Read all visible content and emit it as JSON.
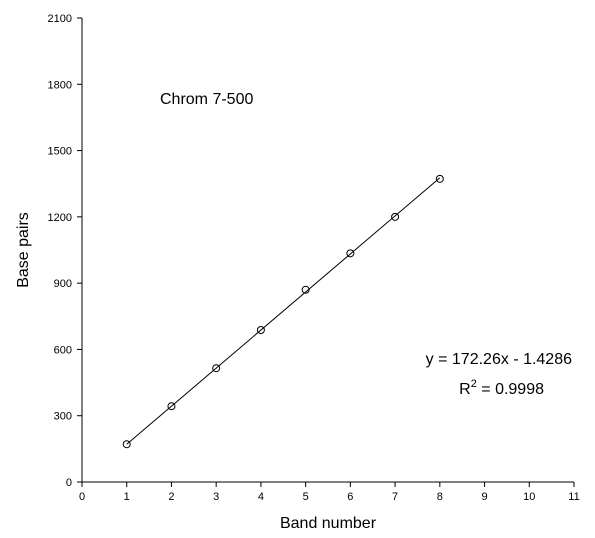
{
  "chart_data": {
    "type": "scatter",
    "xlabel": "Band number",
    "ylabel": "Base pairs",
    "xlim": [
      0,
      11
    ],
    "ylim": [
      0,
      2100
    ],
    "x_ticks": [
      0,
      1,
      2,
      3,
      4,
      5,
      6,
      7,
      8,
      9,
      10,
      11
    ],
    "y_ticks": [
      0,
      300,
      600,
      900,
      1200,
      1500,
      1800,
      2100
    ],
    "grid": false,
    "series": [
      {
        "x": [
          1,
          2,
          3,
          4,
          5,
          6,
          7,
          8
        ],
        "y": [
          171,
          343,
          515,
          688,
          870,
          1035,
          1200,
          1372
        ],
        "marker": "open-circle"
      }
    ],
    "trendline": {
      "slope": 172.26,
      "intercept": -1.4286,
      "x_range": [
        1,
        8
      ]
    },
    "annotations": {
      "label": "Chrom 7-500",
      "equation": "y = 172.26x - 1.4286",
      "r2_prefix": "R",
      "r2_sup": "2",
      "r2_value": " = 0.9998"
    }
  }
}
